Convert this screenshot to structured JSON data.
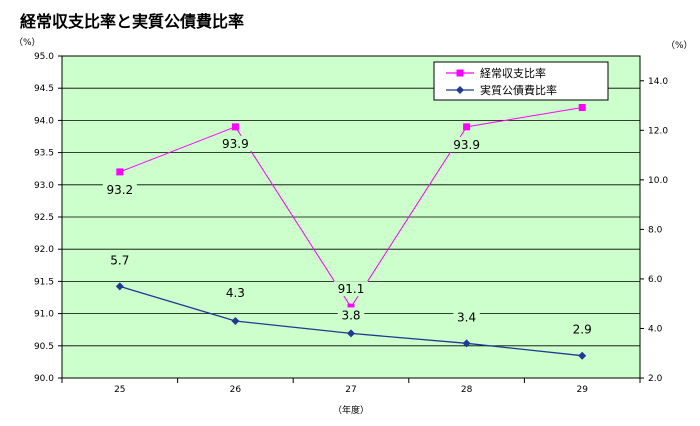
{
  "chart_data": {
    "type": "line",
    "title": "経常収支比率と実質公債費比率",
    "xlabel": "（年度）",
    "left_unit": "（%）",
    "right_unit": "（%）",
    "categories": [
      "25",
      "26",
      "27",
      "28",
      "29"
    ],
    "ylim_left": [
      90.0,
      95.0
    ],
    "ylim_right": [
      2.0,
      15.0
    ],
    "left_ticks": [
      "90.0",
      "90.5",
      "91.0",
      "91.5",
      "92.0",
      "92.5",
      "93.0",
      "93.5",
      "94.0",
      "94.5",
      "95.0"
    ],
    "right_ticks": [
      "2.0",
      "4.0",
      "6.0",
      "8.0",
      "10.0",
      "12.0",
      "14.0"
    ],
    "grid": true,
    "legend_position": "top-right",
    "series": [
      {
        "name": "経常収支比率",
        "axis": "left",
        "color": "#ff00ff",
        "marker": "square",
        "values": [
          93.2,
          93.9,
          91.1,
          93.9,
          94.2
        ],
        "labels": [
          "93.2",
          "93.9",
          "91.1",
          "93.9",
          "94.2"
        ]
      },
      {
        "name": "実質公債費比率",
        "axis": "right",
        "color": "#1f3a93",
        "marker": "diamond",
        "values": [
          5.7,
          4.3,
          3.8,
          3.4,
          2.9
        ],
        "labels": [
          "5.7",
          "4.3",
          "3.8",
          "3.4",
          "2.9"
        ]
      }
    ]
  }
}
